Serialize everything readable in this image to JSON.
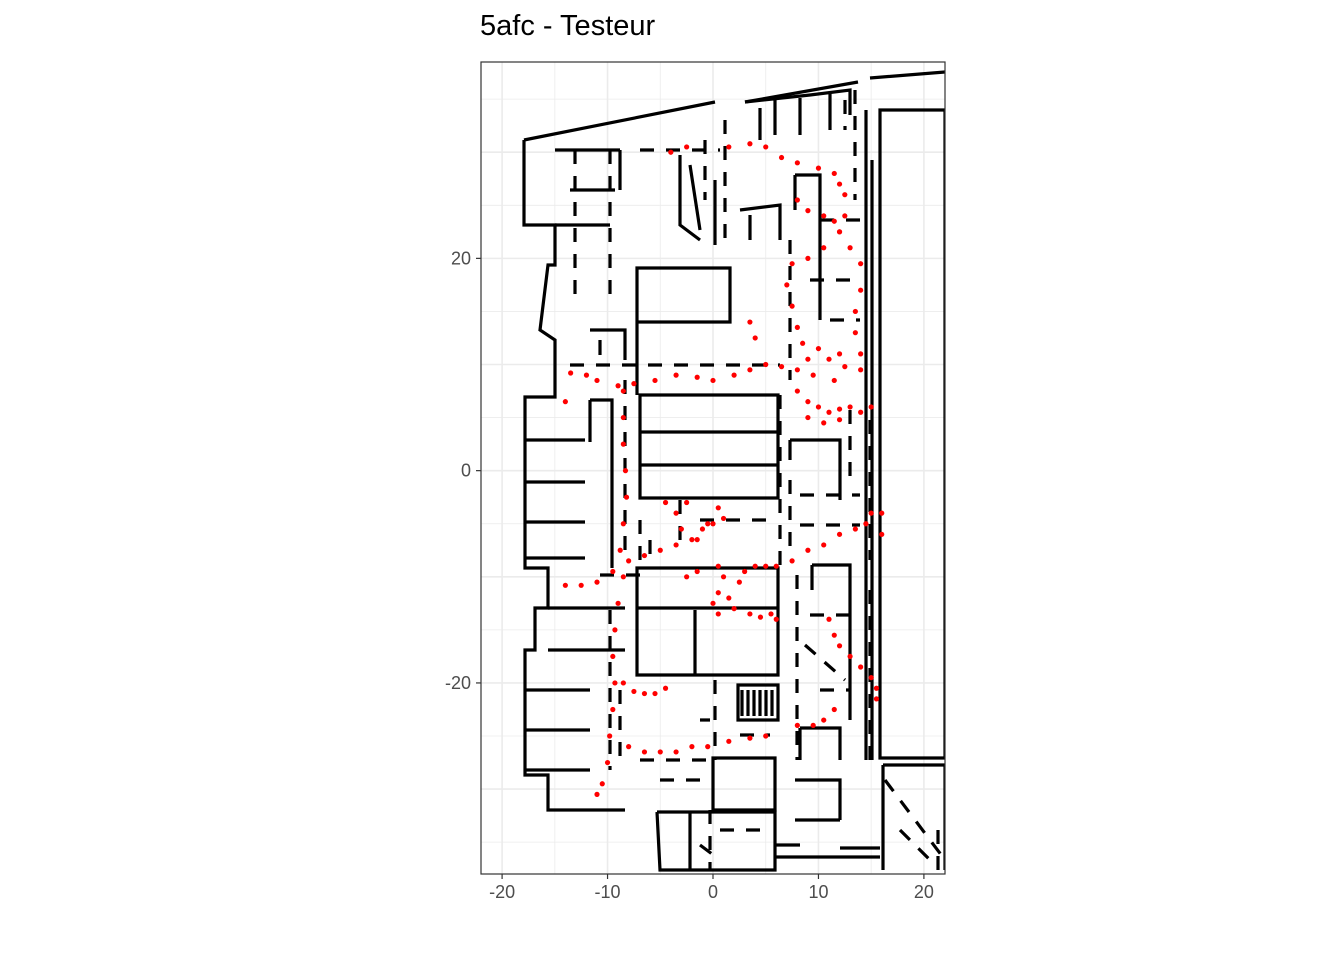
{
  "chart_data": {
    "type": "scatter",
    "title": "5afc - Testeur",
    "xlabel": "",
    "ylabel": "",
    "xlim": [
      -22,
      22
    ],
    "ylim": [
      -38,
      38.5
    ],
    "x_ticks": [
      -20,
      -10,
      0,
      10,
      20
    ],
    "x_tick_labels": [
      "-20",
      "-10",
      "0",
      "10",
      "20"
    ],
    "y_ticks": [
      -20,
      0,
      20
    ],
    "y_tick_labels": [
      "-20",
      "0",
      "20"
    ],
    "grid": true,
    "background": "floor plan (black walls)",
    "colors": {
      "points": "#ff0000",
      "walls": "#000000",
      "grid": "#ebebeb",
      "panel_border": "#333333"
    },
    "series": [
      {
        "points": [
          [
            -4,
            30
          ],
          [
            -2.5,
            30.5
          ],
          [
            1.5,
            30.5
          ],
          [
            3.5,
            30.8
          ],
          [
            5,
            30.5
          ],
          [
            6.5,
            29.5
          ],
          [
            8,
            29
          ],
          [
            10,
            28.5
          ],
          [
            11.5,
            28
          ],
          [
            12,
            27
          ],
          [
            12.5,
            26
          ],
          [
            12.5,
            24
          ],
          [
            12,
            22.5
          ],
          [
            13,
            21
          ],
          [
            14,
            19.5
          ],
          [
            14,
            17
          ],
          [
            13.5,
            15
          ],
          [
            13.5,
            13
          ],
          [
            14,
            11
          ],
          [
            14,
            9.5
          ],
          [
            8,
            25.5
          ],
          [
            9,
            24.5
          ],
          [
            10.5,
            24
          ],
          [
            11.5,
            23.5
          ],
          [
            12,
            22.5
          ],
          [
            10.5,
            21
          ],
          [
            9,
            20
          ],
          [
            7.5,
            19.5
          ],
          [
            7,
            17.5
          ],
          [
            7.5,
            15.5
          ],
          [
            8,
            13.5
          ],
          [
            8.5,
            12
          ],
          [
            9,
            10.5
          ],
          [
            8,
            9.5
          ],
          [
            9.5,
            9
          ],
          [
            11,
            10.5
          ],
          [
            12,
            11
          ],
          [
            12.5,
            9.8
          ],
          [
            10,
            11.5
          ],
          [
            11.5,
            8.5
          ],
          [
            8,
            7.5
          ],
          [
            9,
            6.5
          ],
          [
            10,
            6
          ],
          [
            11,
            5.5
          ],
          [
            12,
            5.8
          ],
          [
            13,
            6
          ],
          [
            14,
            5.5
          ],
          [
            15,
            6
          ],
          [
            9,
            5
          ],
          [
            10.5,
            4.5
          ],
          [
            12,
            4.8
          ],
          [
            6.5,
            9.8
          ],
          [
            5,
            10
          ],
          [
            3.5,
            9.5
          ],
          [
            2,
            9
          ],
          [
            0,
            8.5
          ],
          [
            -1.5,
            8.8
          ],
          [
            -3.5,
            9
          ],
          [
            -5.5,
            8.5
          ],
          [
            -7.5,
            8.2
          ],
          [
            -9,
            8
          ],
          [
            -11,
            8.5
          ],
          [
            -13.5,
            9.2
          ],
          [
            -12,
            9
          ],
          [
            4,
            12.5
          ],
          [
            3.5,
            14
          ],
          [
            -14,
            6.5
          ],
          [
            -8.5,
            7.5
          ],
          [
            -8.5,
            5
          ],
          [
            -8.5,
            2.5
          ],
          [
            -8.3,
            0
          ],
          [
            -8.2,
            -2.5
          ],
          [
            -8.5,
            -5
          ],
          [
            -8.8,
            -7.5
          ],
          [
            -8.5,
            -10
          ],
          [
            -9,
            -12.5
          ],
          [
            -9.3,
            -15
          ],
          [
            -9.5,
            -17.5
          ],
          [
            -9.3,
            -20
          ],
          [
            -9.5,
            -22.5
          ],
          [
            -9.8,
            -25
          ],
          [
            -10,
            -27.5
          ],
          [
            -10.5,
            -29.5
          ],
          [
            -11,
            -30.5
          ],
          [
            -8,
            -26
          ],
          [
            -6.5,
            -26.5
          ],
          [
            -5,
            -26.5
          ],
          [
            -3.5,
            -26.5
          ],
          [
            -2,
            -26
          ],
          [
            -0.5,
            -26
          ],
          [
            1.5,
            -25.5
          ],
          [
            3.5,
            -25.2
          ],
          [
            5,
            -25
          ],
          [
            -8.5,
            -20
          ],
          [
            -7.5,
            -20.8
          ],
          [
            -6.5,
            -21
          ],
          [
            -5.5,
            -21
          ],
          [
            -4.5,
            -20.5
          ],
          [
            -14,
            -10.8
          ],
          [
            -12.5,
            -10.8
          ],
          [
            -11,
            -10.5
          ],
          [
            -9.5,
            -9.5
          ],
          [
            -8,
            -8.5
          ],
          [
            -6.5,
            -8
          ],
          [
            -5,
            -7.5
          ],
          [
            -3.5,
            -7
          ],
          [
            -2,
            -6.5
          ],
          [
            -1,
            -5.5
          ],
          [
            0,
            -5
          ],
          [
            1,
            -4.5
          ],
          [
            0.5,
            -3.5
          ],
          [
            -0.5,
            -5
          ],
          [
            -2.5,
            -3
          ],
          [
            -3.5,
            -4
          ],
          [
            -4.5,
            -3
          ],
          [
            -3,
            -5.5
          ],
          [
            -1.5,
            -6.5
          ],
          [
            0.5,
            -9
          ],
          [
            1,
            -10
          ],
          [
            0.5,
            -11.5
          ],
          [
            0,
            -12.5
          ],
          [
            0.5,
            -13.5
          ],
          [
            1.5,
            -12
          ],
          [
            2.5,
            -10.5
          ],
          [
            3,
            -9.5
          ],
          [
            4,
            -9
          ],
          [
            5,
            -9
          ],
          [
            6,
            -9
          ],
          [
            7.5,
            -8.5
          ],
          [
            9,
            -7.5
          ],
          [
            10.5,
            -7
          ],
          [
            12,
            -6
          ],
          [
            13.5,
            -5.5
          ],
          [
            14.5,
            -5
          ],
          [
            15,
            -4
          ],
          [
            -1.5,
            -9.5
          ],
          [
            -2.5,
            -10
          ],
          [
            2,
            -13
          ],
          [
            3.5,
            -13.5
          ],
          [
            4.5,
            -13.8
          ],
          [
            5.5,
            -13.5
          ],
          [
            6,
            -14
          ],
          [
            11,
            -14
          ],
          [
            11.5,
            -15.5
          ],
          [
            12,
            -16.5
          ],
          [
            13,
            -17.5
          ],
          [
            14,
            -18.5
          ],
          [
            15,
            -19.5
          ],
          [
            15.5,
            -20.5
          ],
          [
            15.5,
            -21.5
          ],
          [
            11.5,
            -22.5
          ],
          [
            10.5,
            -23.5
          ],
          [
            9.5,
            -24
          ],
          [
            8,
            -24
          ],
          [
            16,
            -4
          ],
          [
            16,
            -6
          ]
        ]
      }
    ]
  }
}
